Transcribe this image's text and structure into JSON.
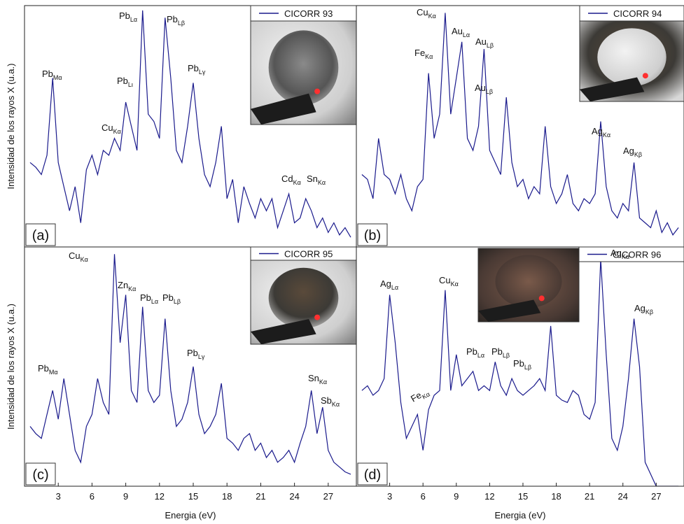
{
  "chart_data": [
    {
      "type": "line",
      "panel_label": "(a)",
      "y_label": "Intensidad de los rayos X (u.a.)",
      "xlim": [
        0,
        29.5
      ],
      "ylim": [
        0,
        100
      ],
      "x": [
        0.5,
        1,
        1.5,
        2,
        2.5,
        3,
        3.5,
        4,
        4.5,
        5,
        5.5,
        6,
        6.5,
        7,
        7.5,
        8,
        8.5,
        9,
        9.5,
        10,
        10.5,
        11,
        11.5,
        12,
        12.5,
        13,
        13.5,
        14,
        14.5,
        15,
        15.5,
        16,
        16.5,
        17,
        17.5,
        18,
        18.5,
        19,
        19.5,
        20,
        20.5,
        21,
        21.5,
        22,
        22.5,
        23,
        23.5,
        24,
        24.5,
        25,
        25.5,
        26,
        26.5,
        27,
        27.5,
        28,
        28.5,
        29
      ],
      "series": [
        {
          "name": "CICORR 93",
          "color": "#1a1a8c",
          "values": [
            35,
            33,
            30,
            38,
            70,
            35,
            25,
            15,
            25,
            10,
            32,
            38,
            30,
            40,
            38,
            45,
            40,
            60,
            50,
            40,
            98,
            55,
            52,
            45,
            95,
            70,
            40,
            35,
            50,
            68,
            45,
            30,
            25,
            35,
            50,
            20,
            28,
            10,
            25,
            18,
            12,
            20,
            15,
            20,
            8,
            15,
            22,
            10,
            12,
            20,
            15,
            8,
            12,
            6,
            10,
            5,
            8,
            4
          ]
        }
      ],
      "annotations": [
        {
          "text": "Pb",
          "sub": "Mα"
        },
        {
          "text": "Cu",
          "sub": "Kα"
        },
        {
          "text": "Pb",
          "sub": "Lι"
        },
        {
          "text": "Pb",
          "sub": "Lα"
        },
        {
          "text": "Pb",
          "sub": "Lβ"
        },
        {
          "text": "Pb",
          "sub": "Lγ"
        },
        {
          "text": "Cd",
          "sub": "Kα"
        },
        {
          "text": "Sn",
          "sub": "Kα"
        }
      ]
    },
    {
      "type": "line",
      "panel_label": "(b)",
      "xlim": [
        0,
        29.5
      ],
      "ylim": [
        0,
        100
      ],
      "x": [
        0.5,
        1,
        1.5,
        2,
        2.5,
        3,
        3.5,
        4,
        4.5,
        5,
        5.5,
        6,
        6.5,
        7,
        7.5,
        8,
        8.5,
        9,
        9.5,
        10,
        10.5,
        11,
        11.5,
        12,
        12.5,
        13,
        13.5,
        14,
        14.5,
        15,
        15.5,
        16,
        16.5,
        17,
        17.5,
        18,
        18.5,
        19,
        19.5,
        20,
        20.5,
        21,
        21.5,
        22,
        22.5,
        23,
        23.5,
        24,
        24.5,
        25,
        25.5,
        26,
        26.5,
        27,
        27.5,
        28,
        28.5,
        29
      ],
      "series": [
        {
          "name": "CICORR 94",
          "color": "#1a1a8c",
          "values": [
            30,
            28,
            20,
            45,
            30,
            28,
            22,
            30,
            20,
            15,
            25,
            28,
            72,
            45,
            55,
            97,
            55,
            70,
            85,
            45,
            40,
            50,
            82,
            40,
            35,
            30,
            62,
            35,
            25,
            28,
            20,
            25,
            22,
            50,
            25,
            18,
            22,
            30,
            18,
            15,
            20,
            18,
            22,
            52,
            25,
            15,
            12,
            18,
            15,
            35,
            12,
            10,
            8,
            15,
            6,
            10,
            5,
            8
          ]
        }
      ],
      "annotations": [
        {
          "text": "Fe",
          "sub": "Kα"
        },
        {
          "text": "Cu",
          "sub": "Kα"
        },
        {
          "text": "Au",
          "sub": "Lα"
        },
        {
          "text": "Au",
          "sub": "Lβ"
        },
        {
          "text": "Au",
          "sub": "Lβ"
        },
        {
          "text": "Ag",
          "sub": "Kα"
        },
        {
          "text": "Ag",
          "sub": "Kβ"
        }
      ]
    },
    {
      "type": "line",
      "panel_label": "(c)",
      "y_label": "Intensidad de los rayos X (u.a.)",
      "x_label": "Energia (eV)",
      "xlim": [
        0,
        29.5
      ],
      "ylim": [
        0,
        100
      ],
      "xticks": [
        3,
        6,
        9,
        12,
        15,
        18,
        21,
        24,
        27
      ],
      "x": [
        0.5,
        1,
        1.5,
        2,
        2.5,
        3,
        3.5,
        4,
        4.5,
        5,
        5.5,
        6,
        6.5,
        7,
        7.5,
        8,
        8.5,
        9,
        9.5,
        10,
        10.5,
        11,
        11.5,
        12,
        12.5,
        13,
        13.5,
        14,
        14.5,
        15,
        15.5,
        16,
        16.5,
        17,
        17.5,
        18,
        18.5,
        19,
        19.5,
        20,
        20.5,
        21,
        21.5,
        22,
        22.5,
        23,
        23.5,
        24,
        24.5,
        25,
        25.5,
        26,
        26.5,
        27,
        27.5,
        28,
        28.5,
        29
      ],
      "series": [
        {
          "name": "CICORR 95",
          "color": "#1a1a8c",
          "values": [
            25,
            22,
            20,
            30,
            40,
            28,
            45,
            30,
            15,
            10,
            25,
            30,
            45,
            35,
            30,
            97,
            60,
            80,
            40,
            35,
            75,
            40,
            35,
            38,
            70,
            40,
            25,
            28,
            35,
            50,
            30,
            22,
            25,
            30,
            43,
            20,
            18,
            15,
            20,
            22,
            15,
            18,
            12,
            15,
            10,
            12,
            15,
            10,
            18,
            25,
            40,
            22,
            33,
            15,
            10,
            8,
            6,
            5
          ]
        }
      ],
      "annotations": [
        {
          "text": "Pb",
          "sub": "Mα"
        },
        {
          "text": "Cu",
          "sub": "Kα"
        },
        {
          "text": "Zn",
          "sub": "Kα"
        },
        {
          "text": "Pb",
          "sub": "Lα"
        },
        {
          "text": "Pb",
          "sub": "Lβ"
        },
        {
          "text": "Pb",
          "sub": "Lγ"
        },
        {
          "text": "Sn",
          "sub": "Kα"
        },
        {
          "text": "Sb",
          "sub": "Kα"
        }
      ]
    },
    {
      "type": "line",
      "panel_label": "(d)",
      "x_label": "Energia (eV)",
      "xlim": [
        0,
        29.5
      ],
      "ylim": [
        0,
        100
      ],
      "xticks": [
        3,
        6,
        9,
        12,
        15,
        18,
        21,
        24,
        27
      ],
      "x": [
        0.5,
        1,
        1.5,
        2,
        2.5,
        3,
        3.5,
        4,
        4.5,
        5,
        5.5,
        6,
        6.5,
        7,
        7.5,
        8,
        8.5,
        9,
        9.5,
        10,
        10.5,
        11,
        11.5,
        12,
        12.5,
        13,
        13.5,
        14,
        14.5,
        15,
        15.5,
        16,
        16.5,
        17,
        17.5,
        18,
        18.5,
        19,
        19.5,
        20,
        20.5,
        21,
        21.5,
        22,
        22.5,
        23,
        23.5,
        24,
        24.5,
        25,
        25.5,
        26,
        26.5,
        27,
        27.5,
        28,
        28.5,
        29
      ],
      "series": [
        {
          "name": "CICORR 96",
          "color": "#1a1a8c",
          "values": [
            40,
            42,
            38,
            40,
            45,
            80,
            60,
            35,
            20,
            25,
            30,
            15,
            32,
            38,
            40,
            82,
            40,
            55,
            42,
            45,
            48,
            40,
            42,
            40,
            52,
            42,
            38,
            45,
            40,
            38,
            40,
            42,
            45,
            40,
            67,
            38,
            36,
            35,
            40,
            38,
            30,
            28,
            35,
            95,
            55,
            20,
            15,
            25,
            45,
            70,
            50,
            10,
            5,
            0,
            0,
            0,
            0,
            0
          ]
        }
      ],
      "annotations": [
        {
          "text": "Ag",
          "sub": "Lα"
        },
        {
          "text": "Fe",
          "sub": "Kα"
        },
        {
          "text": "Cu",
          "sub": "Kα"
        },
        {
          "text": "Pb",
          "sub": "Lα"
        },
        {
          "text": "Pb",
          "sub": "Lβ"
        },
        {
          "text": "Pb",
          "sub": "Lβ"
        },
        {
          "text": "Ag",
          "sub": "Kα"
        },
        {
          "text": "Ag",
          "sub": "Kβ"
        }
      ]
    }
  ]
}
